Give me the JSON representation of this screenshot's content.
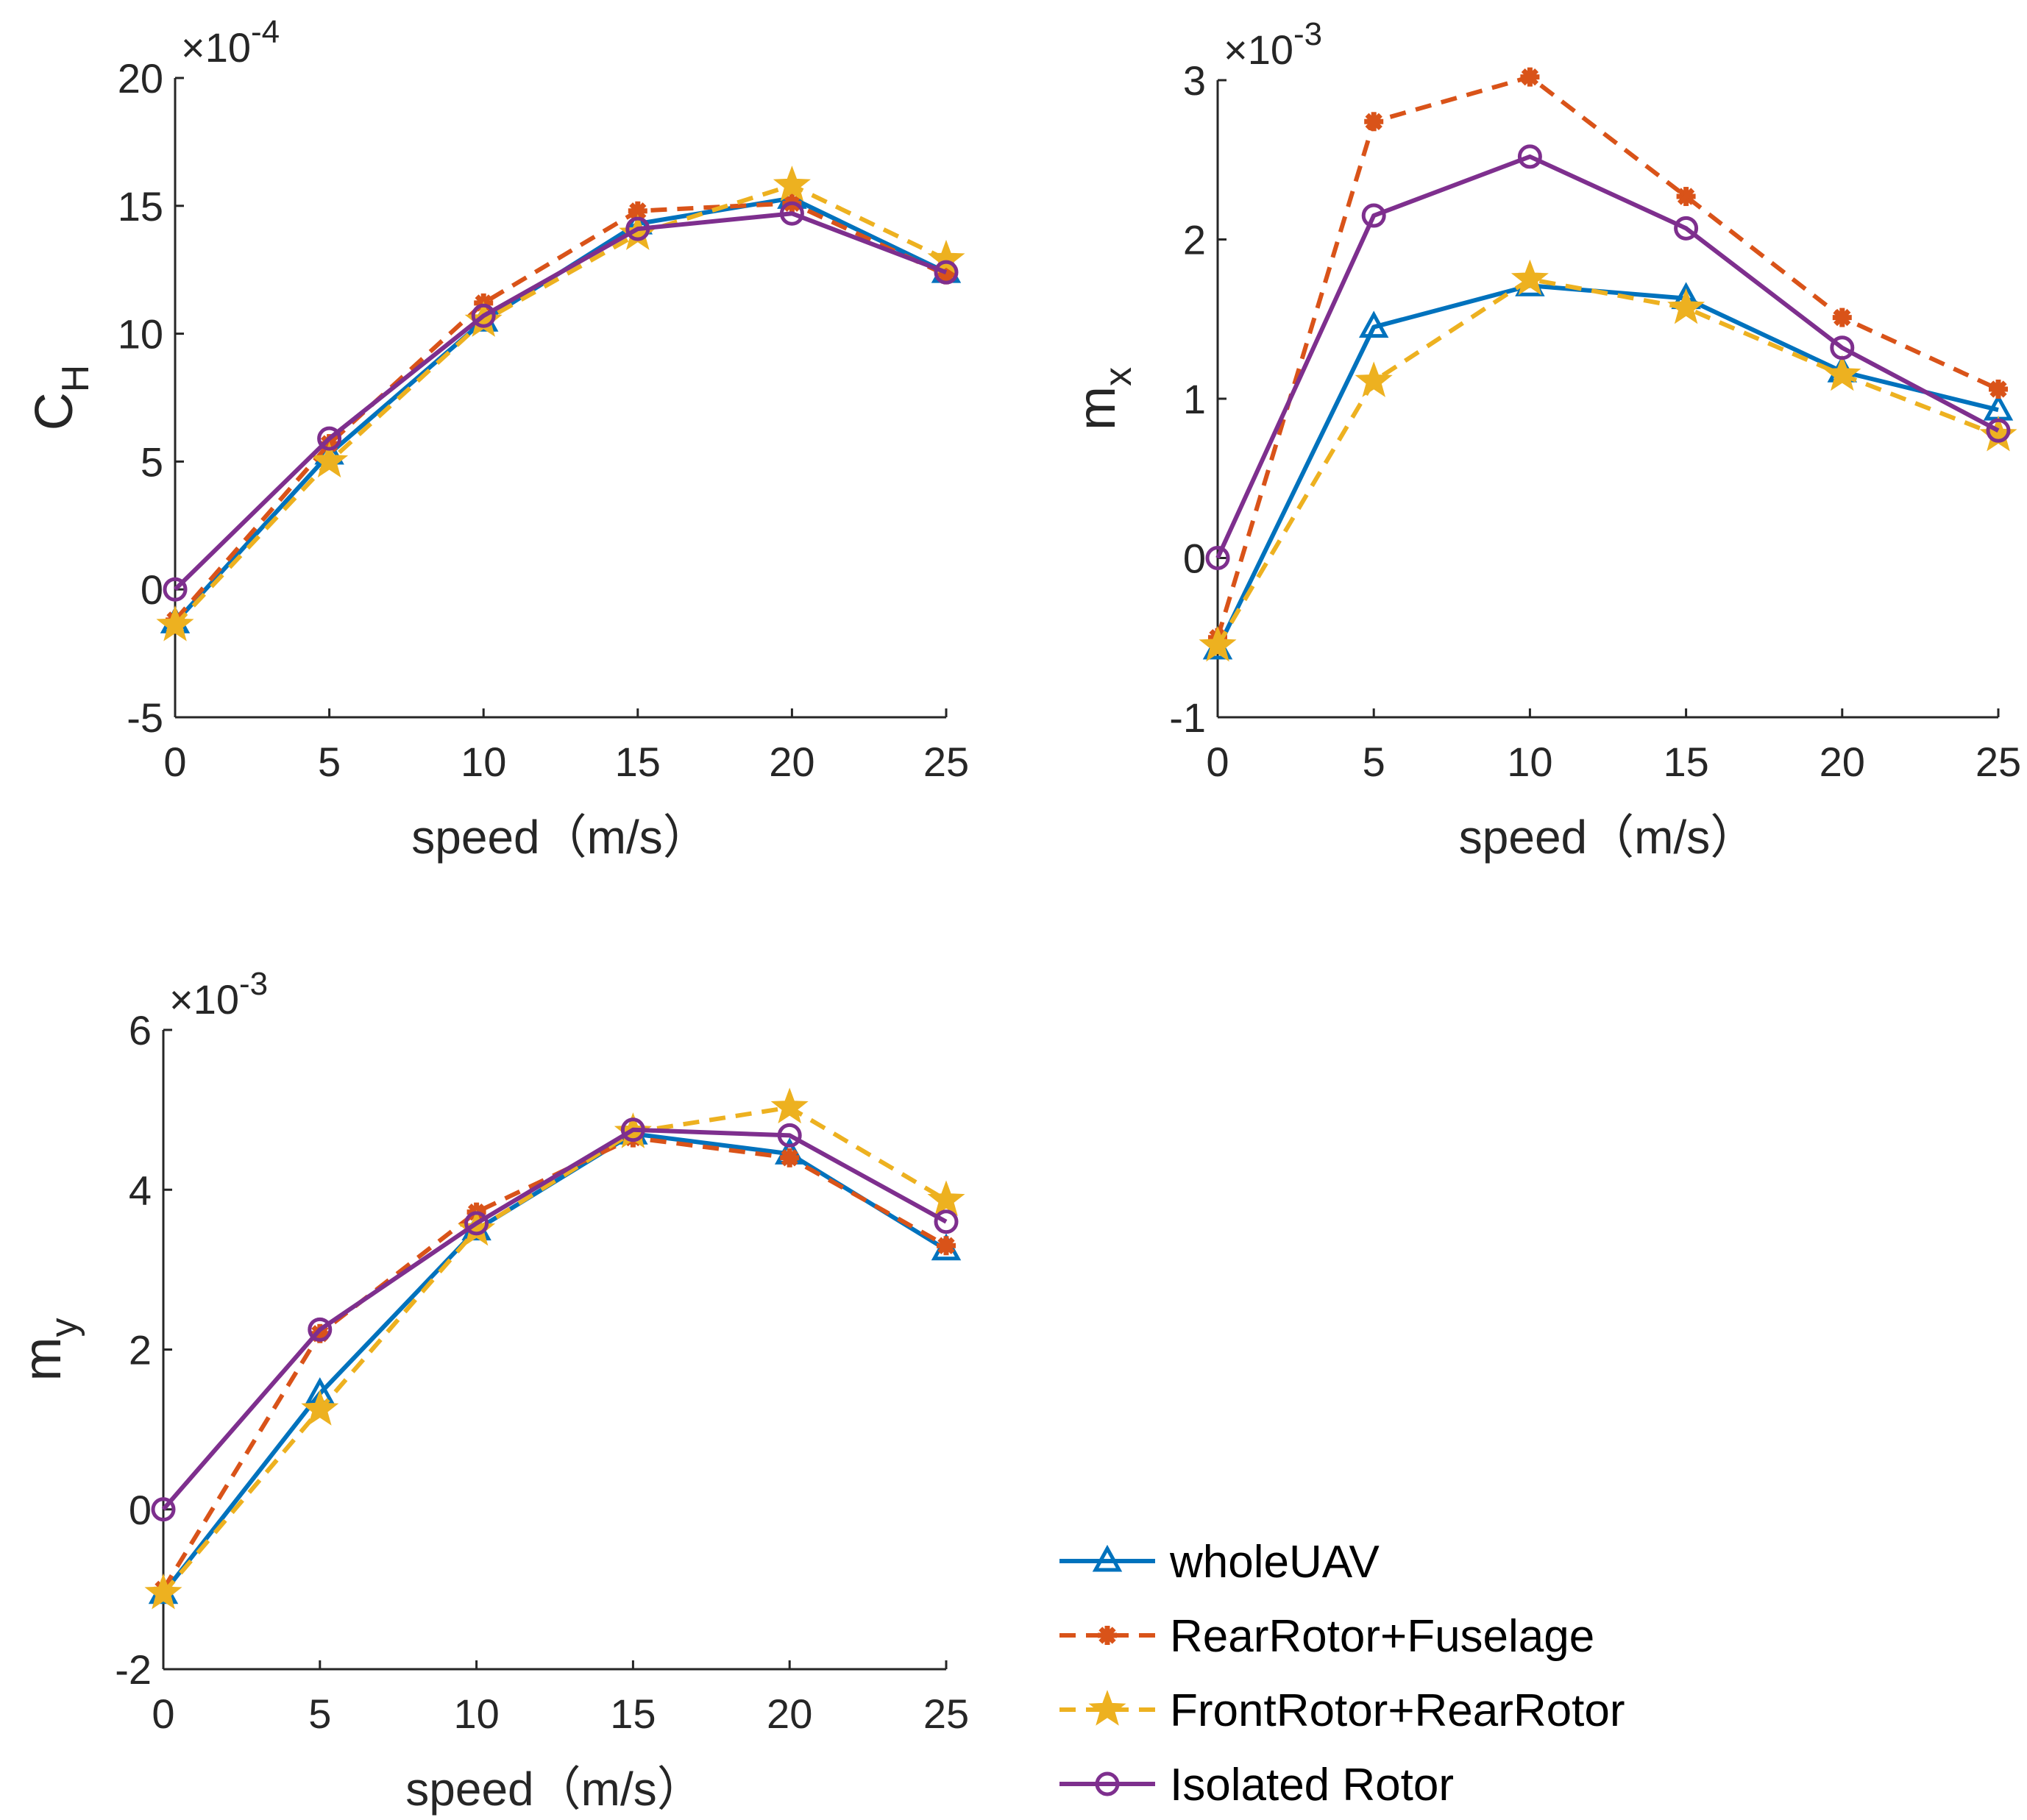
{
  "colors": {
    "wholeUAV": "#0072BD",
    "RearRotor+Fuselage": "#D95319",
    "FrontRotor+RearRotor": "#EDB120",
    "Isolated Rotor": "#7E2F8E",
    "axis": "#262626"
  },
  "legend": {
    "placement": "bottom-right",
    "entries": [
      {
        "label": "wholeUAV",
        "marker": "triangle",
        "dash": "solid"
      },
      {
        "label": "RearRotor+Fuselage",
        "marker": "asterisk",
        "dash": "dashed"
      },
      {
        "label": "FrontRotor+RearRotor",
        "marker": "star",
        "dash": "dashed"
      },
      {
        "label": "Isolated Rotor",
        "marker": "circle",
        "dash": "solid"
      }
    ]
  },
  "chart_data": [
    {
      "type": "line",
      "title": "",
      "xlabel": "speed（m/s）",
      "ylabel": "C",
      "ylabel_sub": "H",
      "exponent_label": "×10",
      "exponent": "-4",
      "x": [
        0,
        5,
        10,
        15,
        20,
        25
      ],
      "xlim": [
        0,
        25
      ],
      "ylim": [
        -5,
        20
      ],
      "xticks": [
        "0",
        "5",
        "10",
        "15",
        "20",
        "25"
      ],
      "yticks": [
        "-5",
        "0",
        "5",
        "10",
        "15",
        "20"
      ],
      "series": [
        {
          "name": "wholeUAV",
          "values": [
            -1.3,
            5.3,
            10.5,
            14.3,
            15.3,
            12.4
          ]
        },
        {
          "name": "RearRotor+Fuselage",
          "values": [
            -1.2,
            5.7,
            11.2,
            14.8,
            15.1,
            12.3
          ]
        },
        {
          "name": "FrontRotor+RearRotor",
          "values": [
            -1.4,
            5.0,
            10.5,
            13.9,
            15.8,
            12.9
          ]
        },
        {
          "name": "Isolated Rotor",
          "values": [
            0,
            5.9,
            10.7,
            14.1,
            14.7,
            12.4
          ]
        }
      ]
    },
    {
      "type": "line",
      "title": "",
      "xlabel": "speed（m/s）",
      "ylabel": "m",
      "ylabel_sub": "x",
      "exponent_label": "×10",
      "exponent": "-3",
      "x": [
        0,
        5,
        10,
        15,
        20,
        25
      ],
      "xlim": [
        0,
        25
      ],
      "ylim": [
        -1,
        3
      ],
      "xticks": [
        "0",
        "5",
        "10",
        "15",
        "20",
        "25"
      ],
      "yticks": [
        "-1",
        "0",
        "1",
        "2",
        "3"
      ],
      "series": [
        {
          "name": "wholeUAV",
          "values": [
            -0.57,
            1.45,
            1.71,
            1.63,
            1.17,
            0.93
          ]
        },
        {
          "name": "RearRotor+Fuselage",
          "values": [
            -0.5,
            2.74,
            3.02,
            2.27,
            1.51,
            1.06
          ]
        },
        {
          "name": "FrontRotor+RearRotor",
          "values": [
            -0.55,
            1.11,
            1.75,
            1.57,
            1.15,
            0.77
          ]
        },
        {
          "name": "Isolated Rotor",
          "values": [
            0,
            2.15,
            2.52,
            2.07,
            1.32,
            0.8
          ]
        }
      ]
    },
    {
      "type": "line",
      "title": "",
      "xlabel": "speed（m/s）",
      "ylabel": "m",
      "ylabel_sub": "y",
      "exponent_label": "×10",
      "exponent": "-3",
      "x": [
        0,
        5,
        10,
        15,
        20,
        25
      ],
      "xlim": [
        0,
        25
      ],
      "ylim": [
        -2,
        6
      ],
      "xticks": [
        "0",
        "5",
        "10",
        "15",
        "20",
        "25"
      ],
      "yticks": [
        "-2",
        "0",
        "2",
        "4",
        "6"
      ],
      "series": [
        {
          "name": "wholeUAV",
          "values": [
            -1.05,
            1.45,
            3.5,
            4.7,
            4.45,
            3.25
          ]
        },
        {
          "name": "RearRotor+Fuselage",
          "values": [
            -1.0,
            2.2,
            3.72,
            4.65,
            4.4,
            3.3
          ]
        },
        {
          "name": "FrontRotor+RearRotor",
          "values": [
            -1.05,
            1.25,
            3.5,
            4.72,
            5.03,
            3.87
          ]
        },
        {
          "name": "Isolated Rotor",
          "values": [
            0,
            2.25,
            3.58,
            4.75,
            4.68,
            3.6
          ]
        }
      ]
    }
  ]
}
